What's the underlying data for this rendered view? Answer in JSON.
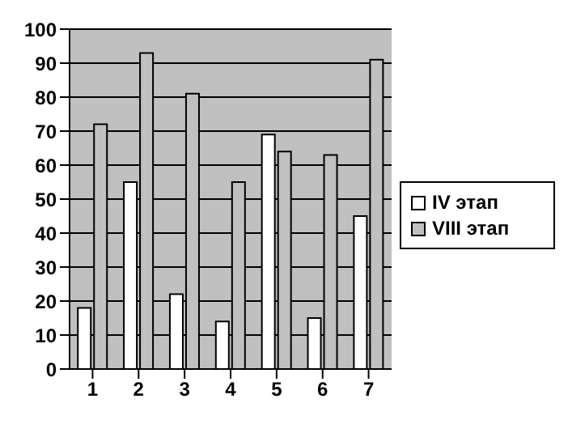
{
  "chart_data": {
    "type": "bar",
    "categories": [
      "1",
      "2",
      "3",
      "4",
      "5",
      "6",
      "7"
    ],
    "series": [
      {
        "name": "IV этап",
        "color": "#ffffff",
        "values": [
          18,
          55,
          22,
          14,
          69,
          15,
          45
        ]
      },
      {
        "name": "VIII этап",
        "color": "#c0c0c0",
        "values": [
          72,
          93,
          81,
          55,
          64,
          63,
          91
        ]
      }
    ],
    "ylim": [
      0,
      100
    ],
    "yticks": [
      0,
      10,
      20,
      30,
      40,
      50,
      60,
      70,
      80,
      90,
      100
    ],
    "grid": "y",
    "legend": "right"
  }
}
